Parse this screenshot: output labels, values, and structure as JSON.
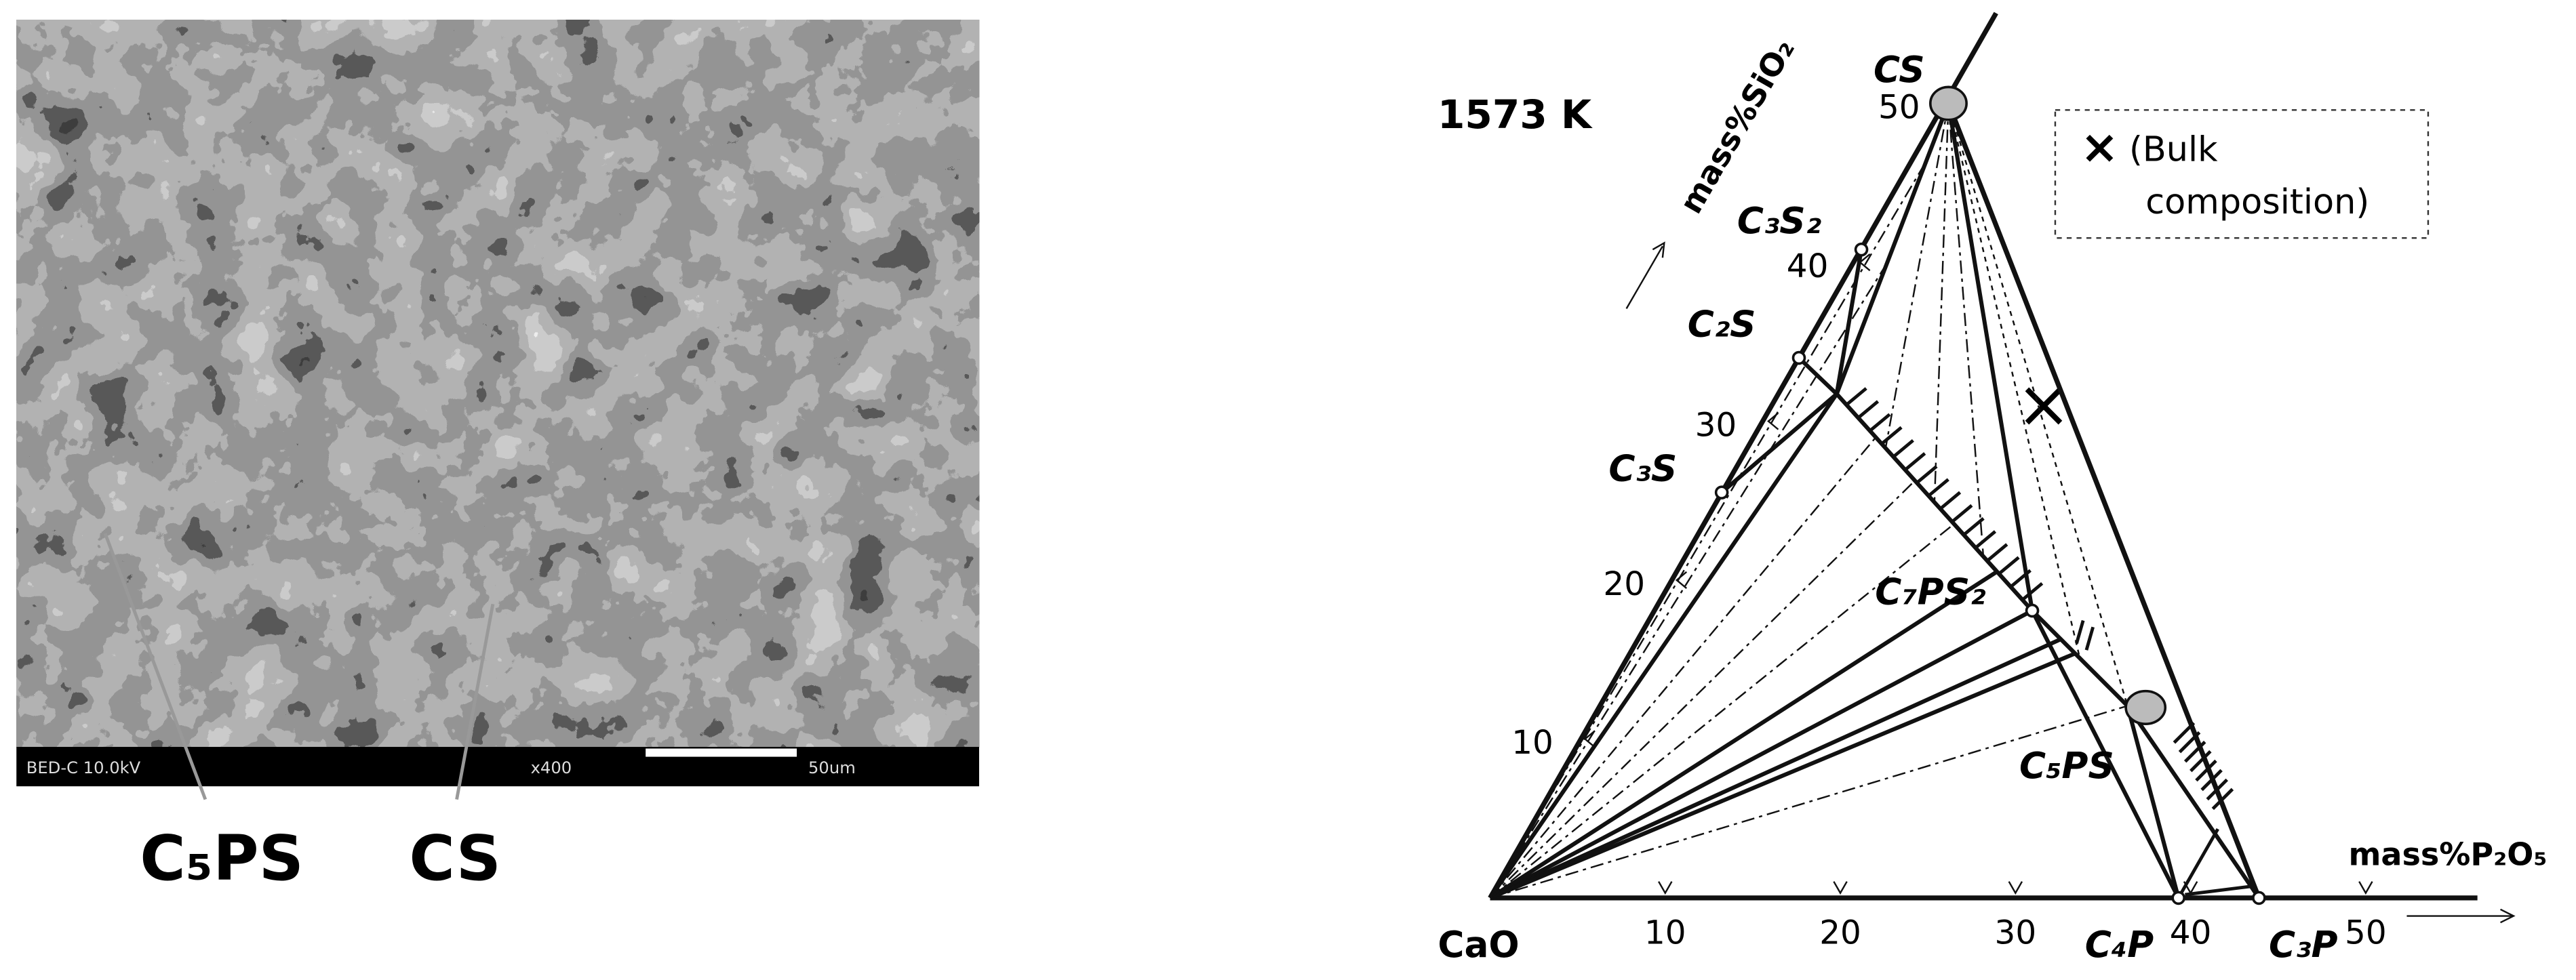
{
  "micrograph": {
    "info": "BED-C 10.0kV",
    "magnification": "x400",
    "scale_bar": "50um",
    "labels": [
      "C₅PS",
      "CS"
    ]
  },
  "diagram": {
    "temperature": "1573 K",
    "axis_sio2": "mass%SiO₂",
    "axis_p2o5": "mass%P₂O₅",
    "sio2_ticks": [
      10,
      20,
      30,
      40,
      50
    ],
    "p2o5_ticks": [
      10,
      20,
      30,
      40,
      50
    ],
    "phases": [
      "CaO",
      "CS",
      "C₃S₂",
      "C₂S",
      "C₃S",
      "C₇PS₂",
      "C₅PS",
      "C₄P",
      "C₃P"
    ],
    "legend": {
      "symbol": "×",
      "line1": "(Bulk",
      "line2": "composition)"
    }
  }
}
